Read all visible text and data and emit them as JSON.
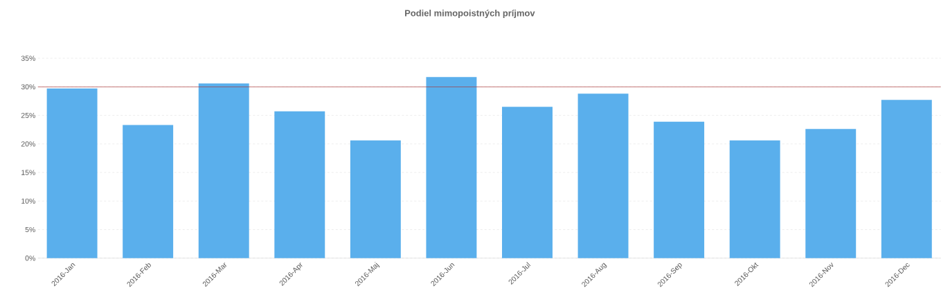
{
  "chart_data": {
    "type": "bar",
    "title": "Podiel mimopoistných príjmov",
    "categories": [
      "2016-Jan",
      "2016-Feb",
      "2016-Mar",
      "2016-Apr",
      "2016-Maj",
      "2016-Jun",
      "2016-Jul",
      "2016-Aug",
      "2016-Sep",
      "2016-Okt",
      "2016-Nov",
      "2016-Dec"
    ],
    "values": [
      29.7,
      23.3,
      30.6,
      25.7,
      20.6,
      31.7,
      26.5,
      28.8,
      23.9,
      20.6,
      22.6,
      27.7
    ],
    "color": "#5aafec",
    "ylim": [
      0,
      35
    ],
    "yticks": [
      {
        "value": 0,
        "label": "0%"
      },
      {
        "value": 5,
        "label": "5%"
      },
      {
        "value": 10,
        "label": "10%"
      },
      {
        "value": 15,
        "label": "15%"
      },
      {
        "value": 20,
        "label": "20%"
      },
      {
        "value": 25,
        "label": "25%"
      },
      {
        "value": 30,
        "label": "30%"
      },
      {
        "value": 35,
        "label": "35%"
      }
    ],
    "grid": "y",
    "ref_lines": [
      {
        "axis": "y",
        "value": 30,
        "color": "#a83232"
      }
    ]
  }
}
